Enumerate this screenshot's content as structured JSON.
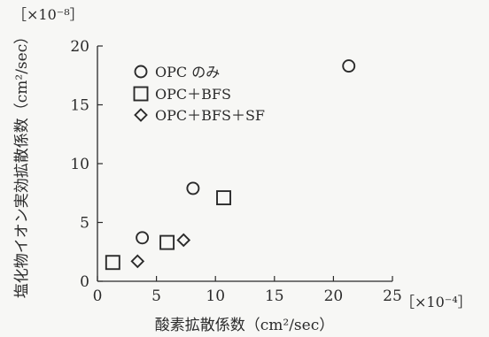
{
  "chart_data": {
    "type": "scatter",
    "title": "",
    "xlabel": "酸素拡散係数（cm²/sec）",
    "ylabel": "塩化物イオン実効拡散係数（cm²/sec）",
    "x_scale_label": "［×10⁻⁴］",
    "y_scale_label": "［×10⁻⁸］",
    "xlim": [
      0,
      25
    ],
    "ylim": [
      0,
      20
    ],
    "x_ticks": [
      "0",
      "5",
      "10",
      "15",
      "20",
      "25"
    ],
    "y_ticks": [
      "0",
      "5",
      "10",
      "15",
      "20"
    ],
    "grid": false,
    "legend_position": "top-left",
    "series": [
      {
        "name": "OPC のみ",
        "marker": "circle",
        "points": [
          [
            3.8,
            3.7
          ],
          [
            8.1,
            7.9
          ],
          [
            21.3,
            18.3
          ]
        ]
      },
      {
        "name": "OPC＋BFS",
        "marker": "square",
        "points": [
          [
            1.3,
            1.6
          ],
          [
            5.9,
            3.3
          ],
          [
            10.7,
            7.1
          ]
        ]
      },
      {
        "name": "OPC＋BFS＋SF",
        "marker": "diamond",
        "points": [
          [
            3.4,
            1.7
          ],
          [
            7.3,
            3.5
          ]
        ]
      }
    ]
  }
}
